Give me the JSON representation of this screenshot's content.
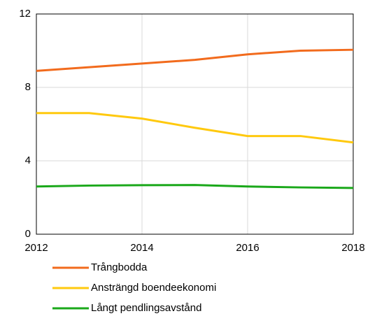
{
  "chart_data": {
    "type": "line",
    "x": [
      2012,
      2013,
      2014,
      2015,
      2016,
      2017,
      2018
    ],
    "series": [
      {
        "name": "Trångbodda",
        "color": "#f26b1d",
        "values": [
          8.9,
          9.1,
          9.3,
          9.5,
          9.8,
          10.0,
          10.05
        ]
      },
      {
        "name": "Ansträngd boendeekonomi",
        "color": "#ffc90e",
        "values": [
          6.6,
          6.6,
          6.3,
          5.8,
          5.35,
          5.35,
          5.0
        ]
      },
      {
        "name": "Långt pendlingsavstånd",
        "color": "#1aa81a",
        "values": [
          2.6,
          2.65,
          2.67,
          2.68,
          2.6,
          2.55,
          2.52
        ]
      }
    ],
    "xlim": [
      2012,
      2018
    ],
    "xticks": [
      2012,
      2014,
      2016,
      2018
    ],
    "ylim": [
      0,
      12
    ],
    "yticks": [
      0,
      4,
      8,
      12
    ],
    "grid": true,
    "legend": "bottom"
  }
}
